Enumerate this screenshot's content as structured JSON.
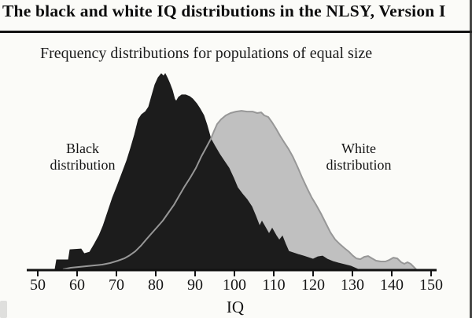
{
  "page": {
    "title": "The black and white IQ distributions in the NLSY, Version I",
    "subtitle": "Frequency distributions for populations of equal size"
  },
  "labels": {
    "black_distribution": [
      "Black",
      "distribution"
    ],
    "white_distribution": [
      "White",
      "distribution"
    ]
  },
  "axis": {
    "label": "IQ",
    "ticks": [
      "50",
      "60",
      "70",
      "80",
      "90",
      "100",
      "110",
      "120",
      "130",
      "140",
      "150"
    ]
  },
  "colors": {
    "black_fill": "#1c1c1c",
    "white_fill": "#c0c0c0",
    "white_outline": "#979797",
    "axis": "#121212",
    "text": "#161616",
    "background": "#fbfbf8"
  },
  "chart_data": {
    "type": "area",
    "title": "The black and white IQ distributions in the NLSY, Version I",
    "subtitle": "Frequency distributions for populations of equal size",
    "xlabel": "IQ",
    "ylabel": "Frequency (axis unlabeled)",
    "xlim": [
      50,
      150
    ],
    "x_ticks": [
      50,
      60,
      70,
      80,
      90,
      100,
      110,
      120,
      130,
      140,
      150
    ],
    "y_units": "relative frequency, percent of maximum",
    "grid": false,
    "legend_position": "inline-annotations",
    "series": [
      {
        "name": "Black distribution",
        "style": "filled-dark",
        "points": [
          [
            54.4,
            0
          ],
          [
            54.8,
            4.8
          ],
          [
            57.8,
            4.8
          ],
          [
            58.2,
            10
          ],
          [
            61,
            10.4
          ],
          [
            61.8,
            8
          ],
          [
            63.2,
            8.8
          ],
          [
            64.4,
            12.9
          ],
          [
            65.6,
            17.3
          ],
          [
            66.6,
            22.1
          ],
          [
            67.8,
            29.3
          ],
          [
            69,
            36.5
          ],
          [
            70.2,
            42.6
          ],
          [
            71.4,
            49
          ],
          [
            72.6,
            55.4
          ],
          [
            73.6,
            61.8
          ],
          [
            74.6,
            68.7
          ],
          [
            75.6,
            76.7
          ],
          [
            76.4,
            79.1
          ],
          [
            77.4,
            80.7
          ],
          [
            78.2,
            83.1
          ],
          [
            79,
            88.8
          ],
          [
            79.8,
            94.4
          ],
          [
            80.6,
            98
          ],
          [
            81.4,
            100
          ],
          [
            82,
            98.8
          ],
          [
            82.4,
            100
          ],
          [
            83,
            97.6
          ],
          [
            83.6,
            94.8
          ],
          [
            84.2,
            91.6
          ],
          [
            84.8,
            87.1
          ],
          [
            85.2,
            85.9
          ],
          [
            85.8,
            88
          ],
          [
            86.6,
            89.2
          ],
          [
            87.6,
            89.2
          ],
          [
            88.6,
            88.4
          ],
          [
            89.4,
            87.1
          ],
          [
            90.4,
            84.7
          ],
          [
            91.2,
            82.3
          ],
          [
            92.2,
            78.7
          ],
          [
            93,
            73.9
          ],
          [
            94,
            66.7
          ],
          [
            95,
            63.1
          ],
          [
            96.2,
            59
          ],
          [
            97.4,
            55.4
          ],
          [
            98.6,
            51.8
          ],
          [
            99.8,
            46.6
          ],
          [
            100.8,
            41.8
          ],
          [
            102,
            38.6
          ],
          [
            103.2,
            35.7
          ],
          [
            104.4,
            32.1
          ],
          [
            105.4,
            27.3
          ],
          [
            106.4,
            22.1
          ],
          [
            107,
            24.5
          ],
          [
            107.8,
            21.7
          ],
          [
            108.8,
            18.1
          ],
          [
            109.6,
            20.9
          ],
          [
            110.6,
            17.3
          ],
          [
            111.4,
            14.9
          ],
          [
            112.2,
            16.9
          ],
          [
            113,
            12.9
          ],
          [
            113.8,
            9.2
          ],
          [
            115,
            8.4
          ],
          [
            116.2,
            7.6
          ],
          [
            117.6,
            6.8
          ],
          [
            118.8,
            6
          ],
          [
            120,
            5.2
          ],
          [
            121.2,
            6.4
          ],
          [
            122.4,
            6.8
          ],
          [
            123.6,
            5.2
          ],
          [
            125,
            4
          ],
          [
            126.4,
            3.2
          ],
          [
            128,
            2.4
          ],
          [
            129.6,
            1.6
          ],
          [
            131.4,
            0
          ]
        ]
      },
      {
        "name": "White distribution",
        "style": "filled-light-gray",
        "points": [
          [
            56.4,
            0
          ],
          [
            58.4,
            0.8
          ],
          [
            60.4,
            1.2
          ],
          [
            62.4,
            1.6
          ],
          [
            64.4,
            2
          ],
          [
            66.4,
            2.4
          ],
          [
            68.4,
            3.2
          ],
          [
            70.4,
            4.4
          ],
          [
            72,
            5.6
          ],
          [
            73.4,
            7.2
          ],
          [
            74.8,
            9.2
          ],
          [
            76.2,
            12
          ],
          [
            77.6,
            15.3
          ],
          [
            79,
            18.5
          ],
          [
            80.4,
            21.7
          ],
          [
            81.8,
            24.9
          ],
          [
            83.2,
            28.9
          ],
          [
            84.6,
            32.9
          ],
          [
            86,
            37.8
          ],
          [
            87.4,
            42.6
          ],
          [
            88.8,
            47
          ],
          [
            90.2,
            51.8
          ],
          [
            91.6,
            57.8
          ],
          [
            92.8,
            62.2
          ],
          [
            94,
            66.7
          ],
          [
            94.8,
            70.7
          ],
          [
            95.6,
            74.3
          ],
          [
            96.6,
            76.7
          ],
          [
            97.8,
            78.7
          ],
          [
            99,
            79.9
          ],
          [
            100.4,
            80.7
          ],
          [
            101.8,
            81.1
          ],
          [
            103.2,
            80.7
          ],
          [
            104.6,
            80.7
          ],
          [
            105.8,
            79.9
          ],
          [
            106.8,
            80.3
          ],
          [
            107.6,
            78.7
          ],
          [
            108.6,
            77.9
          ],
          [
            109.6,
            75.1
          ],
          [
            110.6,
            71.9
          ],
          [
            111.6,
            68.3
          ],
          [
            112.6,
            65.1
          ],
          [
            113.8,
            61.4
          ],
          [
            114.8,
            57.8
          ],
          [
            116,
            52.6
          ],
          [
            117.2,
            47
          ],
          [
            118.4,
            41.8
          ],
          [
            119.6,
            36.9
          ],
          [
            120.8,
            32.9
          ],
          [
            122,
            28.5
          ],
          [
            123.2,
            23.7
          ],
          [
            124.4,
            18.9
          ],
          [
            125.6,
            15.3
          ],
          [
            126.8,
            12.9
          ],
          [
            128,
            10.8
          ],
          [
            129,
            9.2
          ],
          [
            130,
            7.2
          ],
          [
            131,
            5.6
          ],
          [
            132,
            5.2
          ],
          [
            133,
            6.4
          ],
          [
            134,
            6.8
          ],
          [
            135,
            5.6
          ],
          [
            136,
            4.4
          ],
          [
            137.2,
            4
          ],
          [
            138.4,
            4
          ],
          [
            139.4,
            4.8
          ],
          [
            140.4,
            6
          ],
          [
            141.4,
            5.6
          ],
          [
            142.4,
            3.6
          ],
          [
            143.2,
            2.8
          ],
          [
            144,
            3.6
          ],
          [
            144.8,
            2.8
          ],
          [
            145.8,
            0.8
          ],
          [
            146.2,
            0
          ]
        ]
      }
    ]
  }
}
